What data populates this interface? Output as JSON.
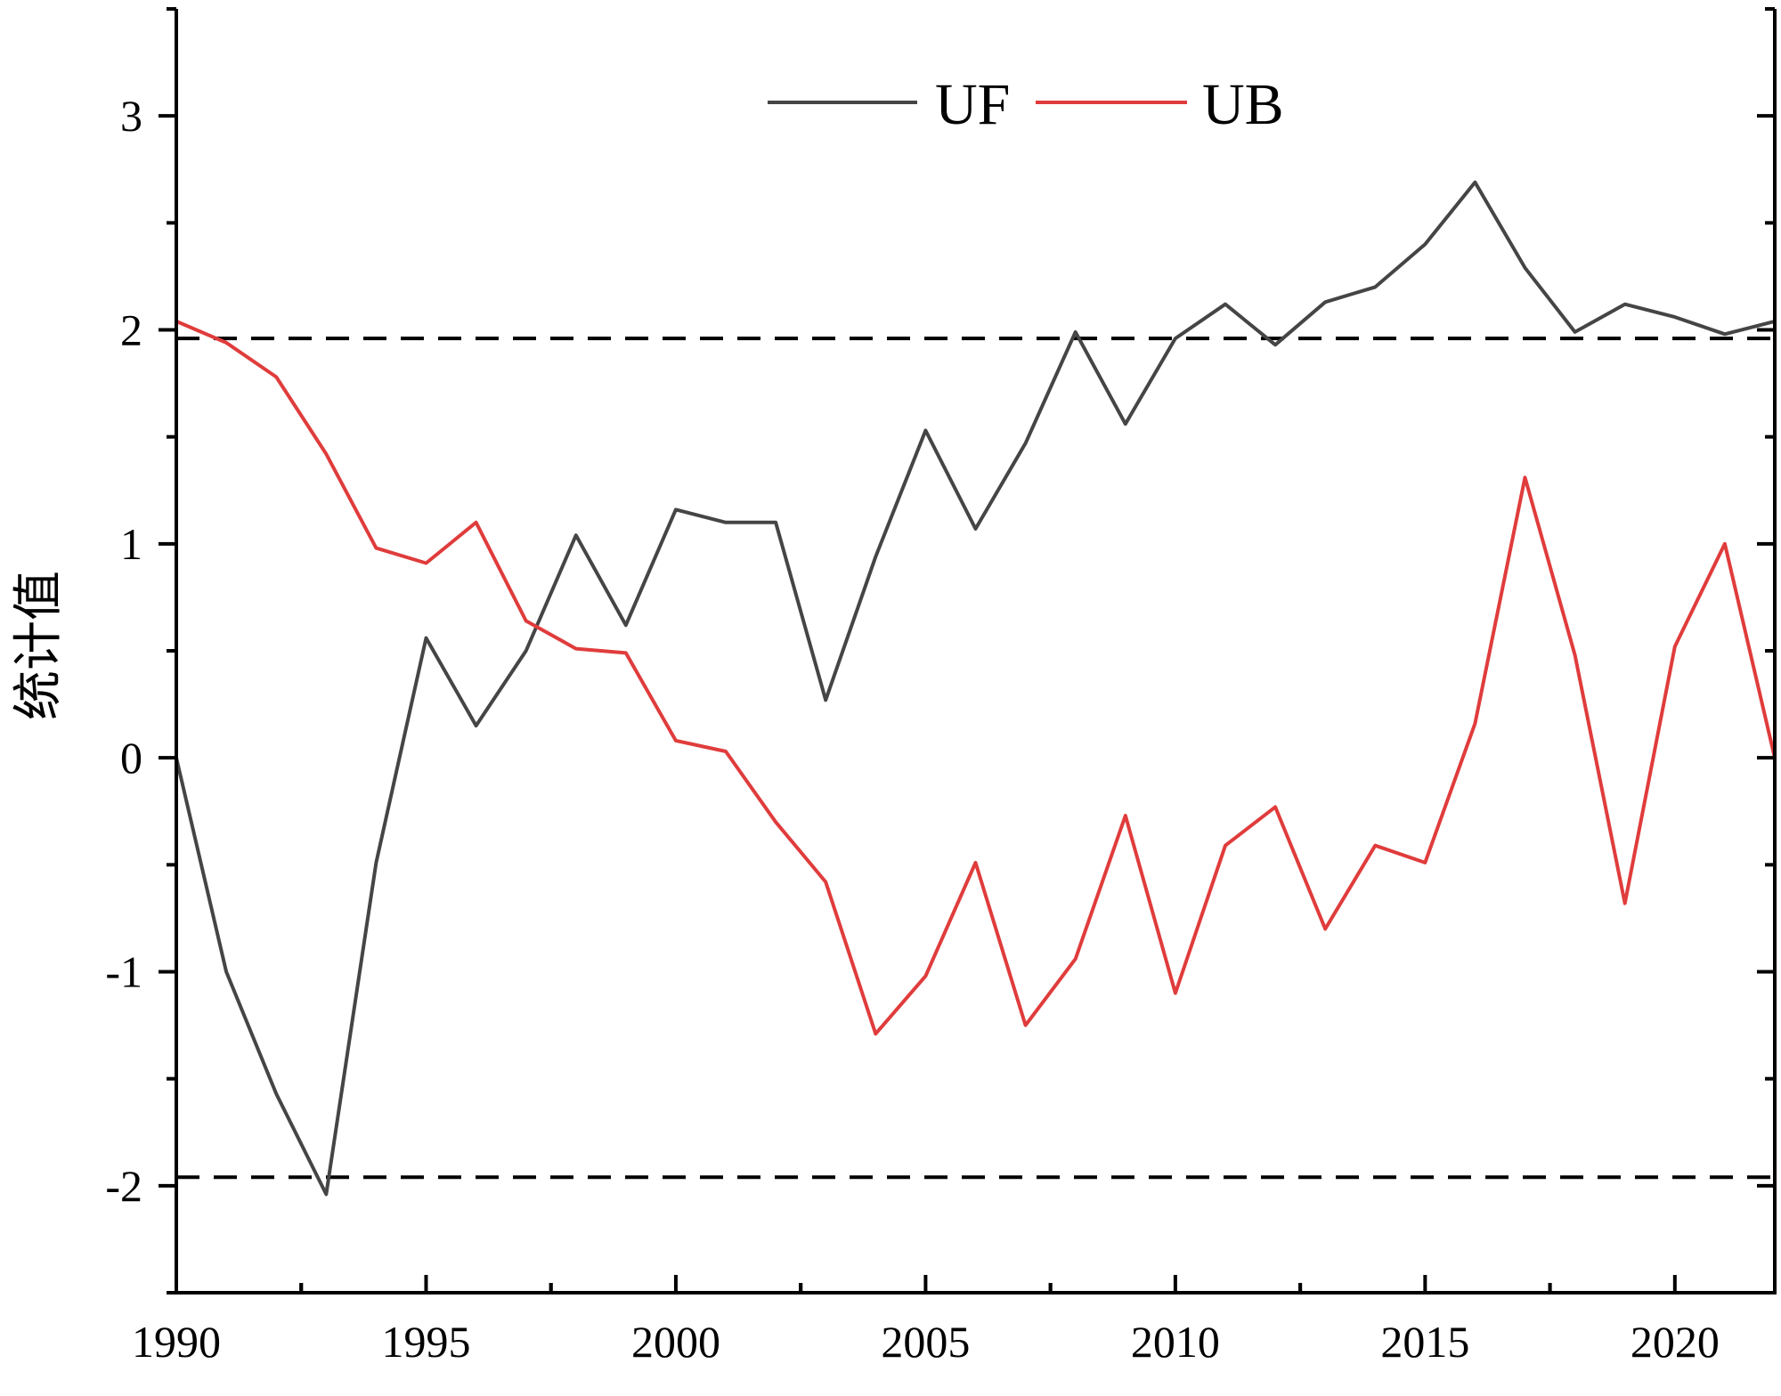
{
  "chart_data": {
    "type": "line",
    "title": "",
    "xlabel": "",
    "ylabel": "统计值",
    "xlim": [
      1990,
      2022
    ],
    "ylim": [
      -2.5,
      3.5
    ],
    "x_ticks": [
      1990,
      1995,
      2000,
      2005,
      2010,
      2015,
      2020
    ],
    "y_ticks": [
      -2,
      -1,
      0,
      1,
      2,
      3
    ],
    "grid": false,
    "legend": "top-center",
    "x": [
      1990,
      1991,
      1992,
      1993,
      1994,
      1995,
      1996,
      1997,
      1998,
      1999,
      2000,
      2001,
      2002,
      2003,
      2004,
      2005,
      2006,
      2007,
      2008,
      2009,
      2010,
      2011,
      2012,
      2013,
      2014,
      2015,
      2016,
      2017,
      2018,
      2019,
      2020,
      2021,
      2022
    ],
    "series": [
      {
        "name": "UF",
        "color": "#454545",
        "values": [
          0.0,
          -1.0,
          -1.57,
          -2.04,
          -0.49,
          0.56,
          0.15,
          0.5,
          1.04,
          0.62,
          1.16,
          1.1,
          1.1,
          0.27,
          0.94,
          1.53,
          1.07,
          1.47,
          1.99,
          1.56,
          1.96,
          2.12,
          1.93,
          2.13,
          2.2,
          2.4,
          2.69,
          2.29,
          1.99,
          2.12,
          2.06,
          1.98,
          2.04
        ]
      },
      {
        "name": "UB",
        "color": "#e03c3c",
        "values": [
          2.04,
          1.94,
          1.78,
          1.42,
          0.98,
          0.91,
          1.1,
          0.64,
          0.51,
          0.49,
          0.08,
          0.03,
          -0.3,
          -0.58,
          -1.29,
          -1.02,
          -0.49,
          -1.25,
          -0.94,
          -0.27,
          -1.1,
          -0.41,
          -0.23,
          -0.8,
          -0.41,
          -0.49,
          0.16,
          1.31,
          0.48,
          -0.68,
          0.52,
          1.0,
          0.0
        ]
      }
    ],
    "reference_lines": [
      {
        "y": 1.96,
        "style": "dashed",
        "color": "#000000"
      },
      {
        "y": -1.96,
        "style": "dashed",
        "color": "#000000"
      }
    ]
  }
}
